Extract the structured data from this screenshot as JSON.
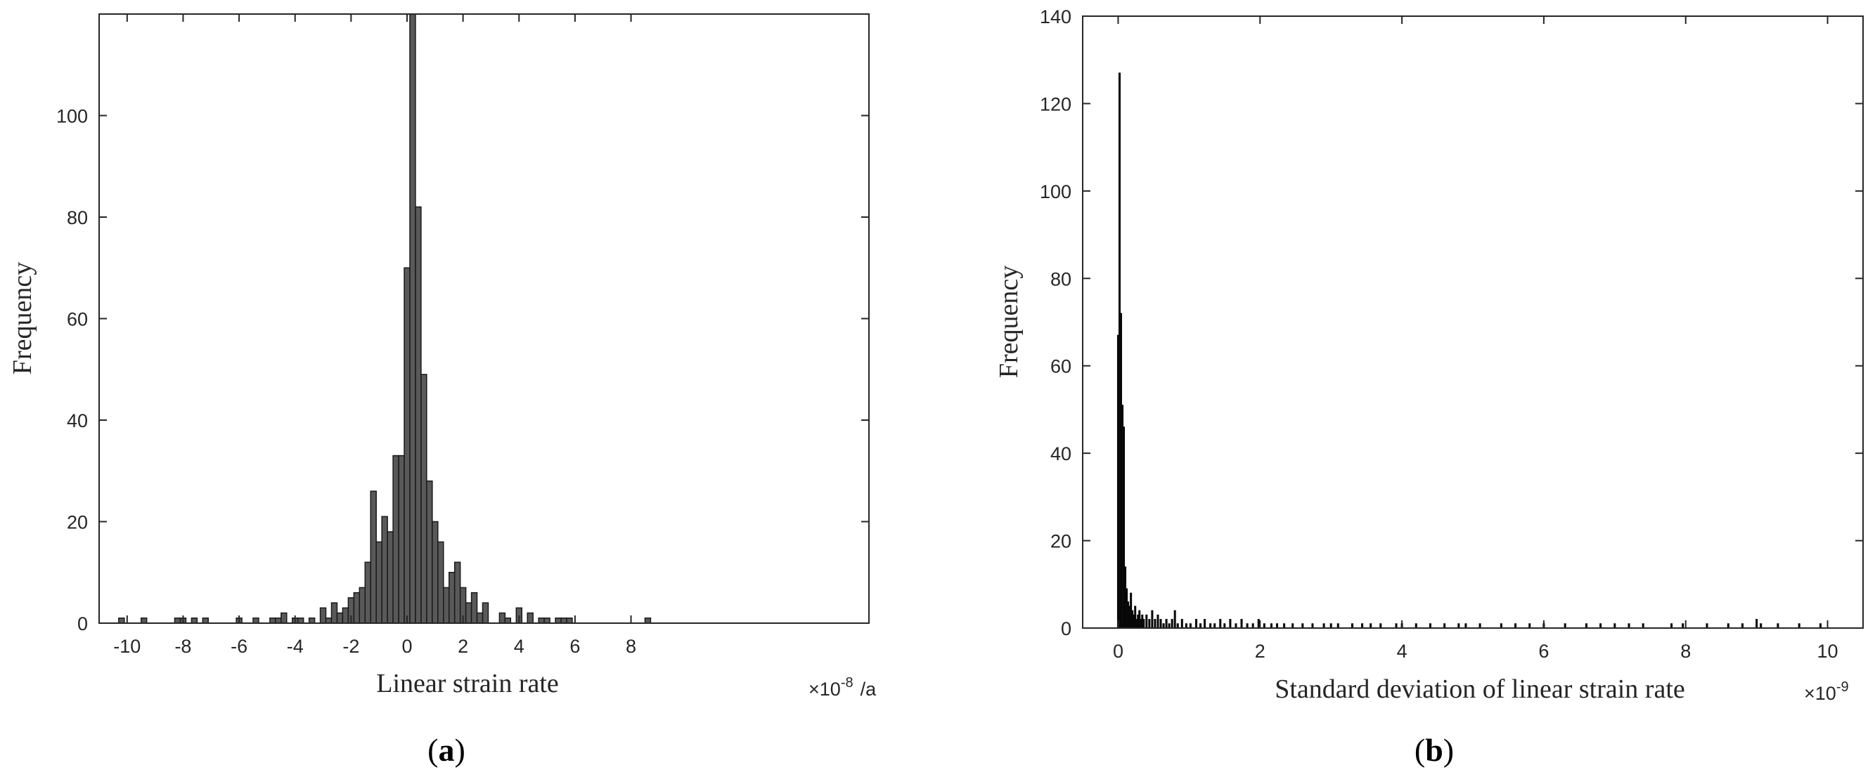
{
  "chart_data": [
    {
      "type": "bar",
      "panel_label": {
        "open": "(",
        "letter": "a",
        "close": ")"
      },
      "xlabel": "Linear strain rate",
      "ylabel": "Frequency",
      "x_multiplier": {
        "prefix": "×10",
        "exponent": "-8",
        "unit": "/a"
      },
      "xlim": [
        -11,
        16.5
      ],
      "ylim": [
        0,
        120
      ],
      "xticks": [
        -10,
        -8,
        -6,
        -4,
        -2,
        0,
        2,
        4,
        6,
        8
      ],
      "yticks": [
        0,
        20,
        40,
        60,
        80,
        100
      ],
      "grid": false,
      "legend": "none",
      "colors": {
        "bar_fill": "#595959",
        "bar_edge": "#1a1a1a",
        "axis": "#262626"
      },
      "bin_width": 0.2,
      "bins": [
        {
          "x": -10.2,
          "y": 1
        },
        {
          "x": -9.4,
          "y": 1
        },
        {
          "x": -8.2,
          "y": 1
        },
        {
          "x": -8.0,
          "y": 1
        },
        {
          "x": -7.6,
          "y": 1
        },
        {
          "x": -7.2,
          "y": 1
        },
        {
          "x": -6.0,
          "y": 1
        },
        {
          "x": -5.4,
          "y": 1
        },
        {
          "x": -4.8,
          "y": 1
        },
        {
          "x": -4.6,
          "y": 1
        },
        {
          "x": -4.4,
          "y": 2
        },
        {
          "x": -4.0,
          "y": 1
        },
        {
          "x": -3.8,
          "y": 1
        },
        {
          "x": -3.4,
          "y": 1
        },
        {
          "x": -3.0,
          "y": 3
        },
        {
          "x": -2.8,
          "y": 1
        },
        {
          "x": -2.6,
          "y": 4
        },
        {
          "x": -2.4,
          "y": 2
        },
        {
          "x": -2.2,
          "y": 3
        },
        {
          "x": -2.0,
          "y": 5
        },
        {
          "x": -1.8,
          "y": 6
        },
        {
          "x": -1.6,
          "y": 7
        },
        {
          "x": -1.4,
          "y": 12
        },
        {
          "x": -1.2,
          "y": 26
        },
        {
          "x": -1.0,
          "y": 16
        },
        {
          "x": -0.8,
          "y": 21
        },
        {
          "x": -0.6,
          "y": 18
        },
        {
          "x": -0.4,
          "y": 33
        },
        {
          "x": -0.2,
          "y": 33
        },
        {
          "x": 0.0,
          "y": 70
        },
        {
          "x": 0.2,
          "y": 120
        },
        {
          "x": 0.4,
          "y": 82
        },
        {
          "x": 0.6,
          "y": 49
        },
        {
          "x": 0.8,
          "y": 28
        },
        {
          "x": 1.0,
          "y": 20
        },
        {
          "x": 1.2,
          "y": 16
        },
        {
          "x": 1.4,
          "y": 7
        },
        {
          "x": 1.6,
          "y": 10
        },
        {
          "x": 1.8,
          "y": 12
        },
        {
          "x": 2.0,
          "y": 7
        },
        {
          "x": 2.2,
          "y": 4
        },
        {
          "x": 2.4,
          "y": 6
        },
        {
          "x": 2.6,
          "y": 2
        },
        {
          "x": 2.8,
          "y": 4
        },
        {
          "x": 3.4,
          "y": 2
        },
        {
          "x": 3.6,
          "y": 1
        },
        {
          "x": 4.0,
          "y": 3
        },
        {
          "x": 4.4,
          "y": 2
        },
        {
          "x": 4.8,
          "y": 1
        },
        {
          "x": 5.0,
          "y": 1
        },
        {
          "x": 5.4,
          "y": 1
        },
        {
          "x": 5.6,
          "y": 1
        },
        {
          "x": 5.8,
          "y": 1
        },
        {
          "x": 8.6,
          "y": 1
        }
      ]
    },
    {
      "type": "bar",
      "panel_label": {
        "open": "(",
        "letter": "b",
        "close": ")"
      },
      "xlabel": "Standard deviation of linear strain rate",
      "ylabel": "Frequency",
      "x_multiplier": {
        "prefix": "×10",
        "exponent": "-9",
        "unit": ""
      },
      "xlim": [
        -0.5,
        10.5
      ],
      "ylim": [
        0,
        140
      ],
      "xticks": [
        0,
        2,
        4,
        6,
        8,
        10
      ],
      "yticks": [
        0,
        20,
        40,
        60,
        80,
        100,
        120,
        140
      ],
      "grid": false,
      "legend": "none",
      "colors": {
        "bar_fill": "#111111",
        "bar_edge": "#000000",
        "axis": "#262626"
      },
      "bin_width": 0.02,
      "bins": [
        {
          "x": 0.0,
          "y": 67
        },
        {
          "x": 0.02,
          "y": 127
        },
        {
          "x": 0.04,
          "y": 72
        },
        {
          "x": 0.06,
          "y": 51
        },
        {
          "x": 0.08,
          "y": 46
        },
        {
          "x": 0.1,
          "y": 14
        },
        {
          "x": 0.12,
          "y": 9
        },
        {
          "x": 0.14,
          "y": 6
        },
        {
          "x": 0.16,
          "y": 5
        },
        {
          "x": 0.18,
          "y": 8
        },
        {
          "x": 0.2,
          "y": 4
        },
        {
          "x": 0.22,
          "y": 3
        },
        {
          "x": 0.24,
          "y": 5
        },
        {
          "x": 0.26,
          "y": 2
        },
        {
          "x": 0.28,
          "y": 3
        },
        {
          "x": 0.3,
          "y": 4
        },
        {
          "x": 0.32,
          "y": 2
        },
        {
          "x": 0.34,
          "y": 3
        },
        {
          "x": 0.36,
          "y": 2
        },
        {
          "x": 0.4,
          "y": 3
        },
        {
          "x": 0.44,
          "y": 2
        },
        {
          "x": 0.48,
          "y": 4
        },
        {
          "x": 0.52,
          "y": 2
        },
        {
          "x": 0.56,
          "y": 3
        },
        {
          "x": 0.6,
          "y": 2
        },
        {
          "x": 0.64,
          "y": 1
        },
        {
          "x": 0.68,
          "y": 2
        },
        {
          "x": 0.72,
          "y": 1
        },
        {
          "x": 0.76,
          "y": 2
        },
        {
          "x": 0.8,
          "y": 4
        },
        {
          "x": 0.84,
          "y": 1
        },
        {
          "x": 0.9,
          "y": 2
        },
        {
          "x": 0.96,
          "y": 1
        },
        {
          "x": 1.02,
          "y": 1
        },
        {
          "x": 1.1,
          "y": 2
        },
        {
          "x": 1.16,
          "y": 1
        },
        {
          "x": 1.22,
          "y": 2
        },
        {
          "x": 1.3,
          "y": 1
        },
        {
          "x": 1.36,
          "y": 1
        },
        {
          "x": 1.44,
          "y": 2
        },
        {
          "x": 1.5,
          "y": 1
        },
        {
          "x": 1.58,
          "y": 2
        },
        {
          "x": 1.66,
          "y": 1
        },
        {
          "x": 1.74,
          "y": 2
        },
        {
          "x": 1.82,
          "y": 1
        },
        {
          "x": 1.9,
          "y": 1
        },
        {
          "x": 1.98,
          "y": 2
        },
        {
          "x": 2.06,
          "y": 1
        },
        {
          "x": 2.16,
          "y": 1
        },
        {
          "x": 2.24,
          "y": 1
        },
        {
          "x": 2.34,
          "y": 1
        },
        {
          "x": 2.46,
          "y": 1
        },
        {
          "x": 2.6,
          "y": 1
        },
        {
          "x": 2.74,
          "y": 1
        },
        {
          "x": 2.9,
          "y": 1
        },
        {
          "x": 3.0,
          "y": 1
        },
        {
          "x": 3.1,
          "y": 1
        },
        {
          "x": 3.3,
          "y": 1
        },
        {
          "x": 3.44,
          "y": 1
        },
        {
          "x": 3.56,
          "y": 1
        },
        {
          "x": 3.7,
          "y": 1
        },
        {
          "x": 3.92,
          "y": 1
        },
        {
          "x": 4.0,
          "y": 1
        },
        {
          "x": 4.2,
          "y": 1
        },
        {
          "x": 4.4,
          "y": 1
        },
        {
          "x": 4.6,
          "y": 1
        },
        {
          "x": 4.8,
          "y": 1
        },
        {
          "x": 4.9,
          "y": 1
        },
        {
          "x": 5.1,
          "y": 1
        },
        {
          "x": 5.4,
          "y": 1
        },
        {
          "x": 5.6,
          "y": 1
        },
        {
          "x": 5.8,
          "y": 1
        },
        {
          "x": 6.0,
          "y": 1
        },
        {
          "x": 6.3,
          "y": 1
        },
        {
          "x": 6.6,
          "y": 1
        },
        {
          "x": 6.8,
          "y": 1
        },
        {
          "x": 7.0,
          "y": 1
        },
        {
          "x": 7.2,
          "y": 1
        },
        {
          "x": 7.4,
          "y": 1
        },
        {
          "x": 7.8,
          "y": 1
        },
        {
          "x": 7.96,
          "y": 1
        },
        {
          "x": 8.3,
          "y": 1
        },
        {
          "x": 8.6,
          "y": 1
        },
        {
          "x": 8.8,
          "y": 1
        },
        {
          "x": 9.0,
          "y": 2
        },
        {
          "x": 9.06,
          "y": 1
        },
        {
          "x": 9.3,
          "y": 1
        },
        {
          "x": 9.6,
          "y": 1
        },
        {
          "x": 9.9,
          "y": 1
        }
      ]
    }
  ]
}
